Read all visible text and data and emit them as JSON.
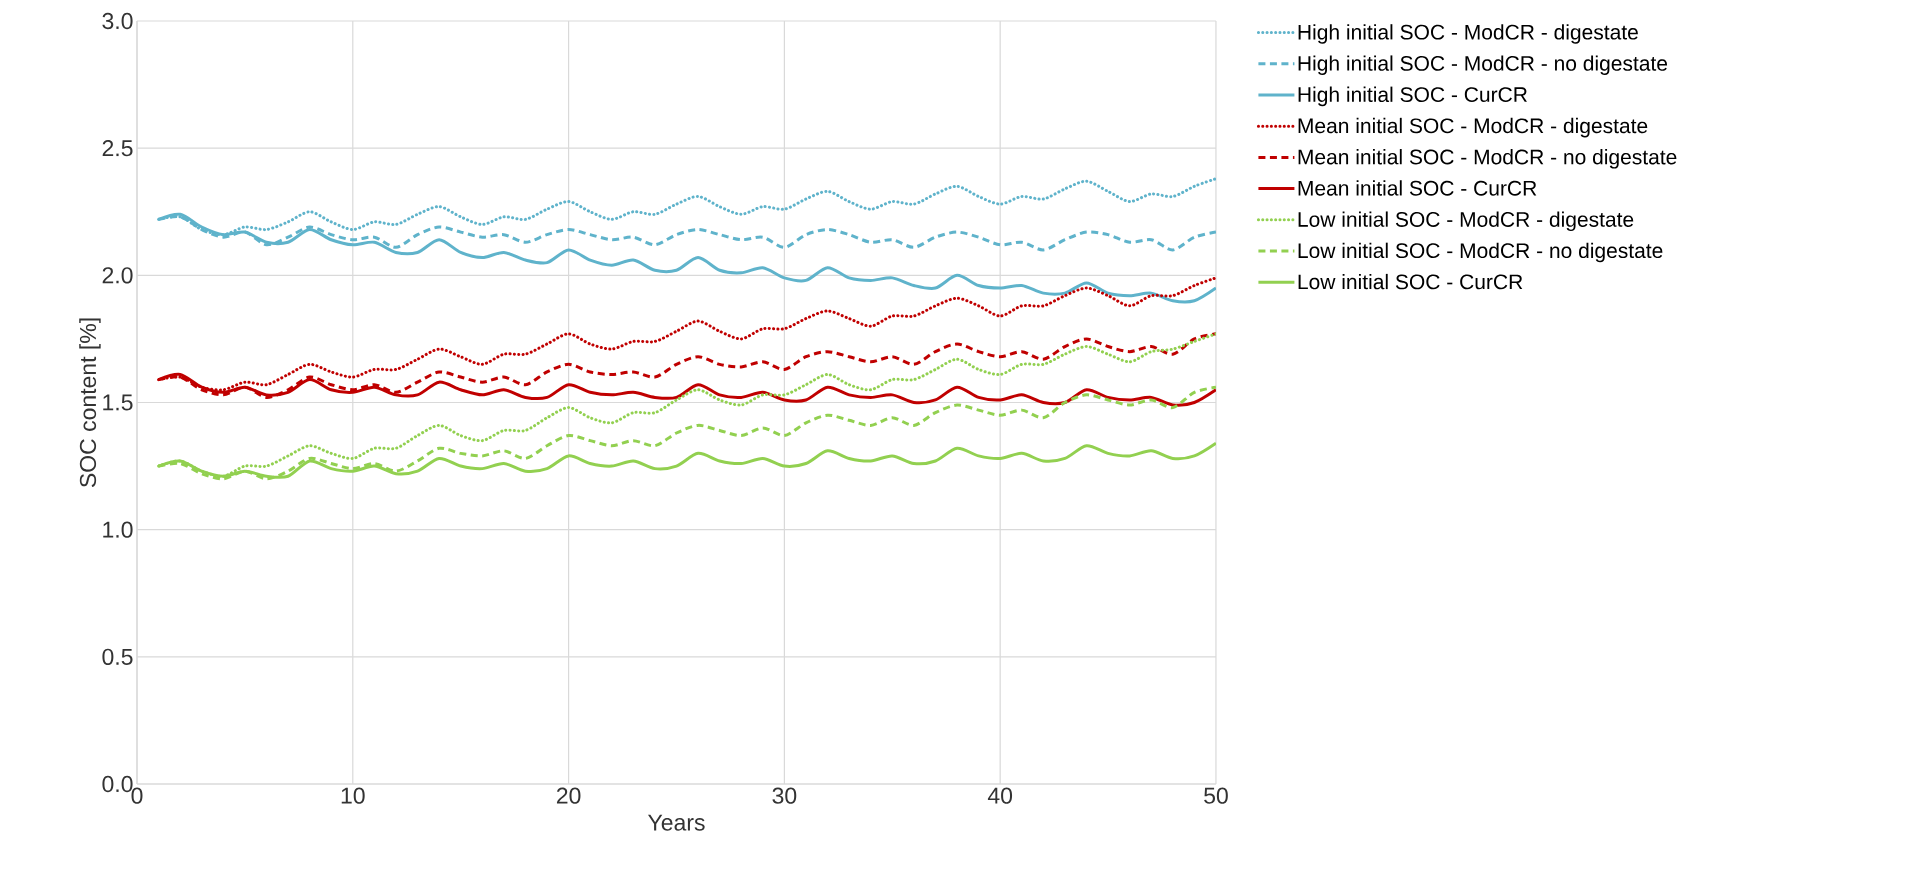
{
  "chart_data": {
    "type": "line",
    "xlabel": "Years",
    "ylabel": "SOC content  [%]",
    "x": [
      1,
      2,
      3,
      4,
      5,
      6,
      7,
      8,
      9,
      10,
      11,
      12,
      13,
      14,
      15,
      16,
      17,
      18,
      19,
      20,
      21,
      22,
      23,
      24,
      25,
      26,
      27,
      28,
      29,
      30,
      31,
      32,
      33,
      34,
      35,
      36,
      37,
      38,
      39,
      40,
      41,
      42,
      43,
      44,
      45,
      46,
      47,
      48,
      49,
      50
    ],
    "xlim": [
      0,
      50
    ],
    "xticks": [
      0,
      10,
      20,
      30,
      40,
      50
    ],
    "ylim": [
      0,
      3
    ],
    "yticks": [
      {
        "value": 0,
        "label": "0.0"
      },
      {
        "value": 0.5,
        "label": "0.5"
      },
      {
        "value": 1,
        "label": "1.0"
      },
      {
        "value": 1.5,
        "label": "1.5"
      },
      {
        "value": 2,
        "label": "2.0"
      },
      {
        "value": 2.5,
        "label": "2.5"
      },
      {
        "value": 3,
        "label": "3.0"
      }
    ],
    "grid": true,
    "legend": "right",
    "series": [
      {
        "name": "High initial SOC - ModCR - digestate",
        "color": "#5fb3cb",
        "line_style": "dotted",
        "values": [
          2.22,
          2.23,
          2.18,
          2.16,
          2.19,
          2.18,
          2.21,
          2.25,
          2.21,
          2.18,
          2.21,
          2.2,
          2.24,
          2.27,
          2.23,
          2.2,
          2.23,
          2.22,
          2.26,
          2.29,
          2.25,
          2.22,
          2.25,
          2.24,
          2.28,
          2.31,
          2.27,
          2.24,
          2.27,
          2.26,
          2.3,
          2.33,
          2.29,
          2.26,
          2.29,
          2.28,
          2.32,
          2.35,
          2.31,
          2.28,
          2.31,
          2.3,
          2.34,
          2.37,
          2.33,
          2.29,
          2.32,
          2.31,
          2.35,
          2.38
        ]
      },
      {
        "name": "High initial SOC - ModCR - no digestate",
        "color": "#5fb3cb",
        "line_style": "dashed",
        "values": [
          2.22,
          2.23,
          2.18,
          2.15,
          2.17,
          2.12,
          2.15,
          2.19,
          2.16,
          2.14,
          2.15,
          2.11,
          2.16,
          2.19,
          2.17,
          2.15,
          2.16,
          2.13,
          2.16,
          2.18,
          2.16,
          2.14,
          2.15,
          2.12,
          2.16,
          2.18,
          2.16,
          2.14,
          2.15,
          2.11,
          2.16,
          2.18,
          2.16,
          2.13,
          2.14,
          2.11,
          2.15,
          2.17,
          2.15,
          2.12,
          2.13,
          2.1,
          2.14,
          2.17,
          2.16,
          2.13,
          2.14,
          2.1,
          2.15,
          2.17
        ]
      },
      {
        "name": "High initial SOC - CurCR",
        "color": "#5fb3cb",
        "line_style": "solid",
        "values": [
          2.22,
          2.24,
          2.19,
          2.16,
          2.17,
          2.13,
          2.13,
          2.18,
          2.14,
          2.12,
          2.13,
          2.09,
          2.09,
          2.14,
          2.09,
          2.07,
          2.09,
          2.06,
          2.05,
          2.1,
          2.06,
          2.04,
          2.06,
          2.02,
          2.02,
          2.07,
          2.02,
          2.01,
          2.03,
          1.99,
          1.98,
          2.03,
          1.99,
          1.98,
          1.99,
          1.96,
          1.95,
          2.0,
          1.96,
          1.95,
          1.96,
          1.93,
          1.93,
          1.97,
          1.93,
          1.92,
          1.93,
          1.9,
          1.9,
          1.95
        ]
      },
      {
        "name": "Mean initial SOC - ModCR - digestate",
        "color": "#c00000",
        "line_style": "dotted",
        "values": [
          1.59,
          1.6,
          1.56,
          1.55,
          1.58,
          1.57,
          1.61,
          1.65,
          1.62,
          1.6,
          1.63,
          1.63,
          1.67,
          1.71,
          1.68,
          1.65,
          1.69,
          1.69,
          1.73,
          1.77,
          1.73,
          1.71,
          1.74,
          1.74,
          1.78,
          1.82,
          1.78,
          1.75,
          1.79,
          1.79,
          1.83,
          1.86,
          1.83,
          1.8,
          1.84,
          1.84,
          1.88,
          1.91,
          1.88,
          1.84,
          1.88,
          1.88,
          1.92,
          1.95,
          1.92,
          1.88,
          1.92,
          1.92,
          1.96,
          1.99
        ]
      },
      {
        "name": "Mean initial SOC - ModCR - no digestate",
        "color": "#c00000",
        "line_style": "dashed",
        "values": [
          1.59,
          1.6,
          1.55,
          1.53,
          1.56,
          1.52,
          1.55,
          1.6,
          1.57,
          1.55,
          1.57,
          1.54,
          1.58,
          1.62,
          1.6,
          1.58,
          1.6,
          1.57,
          1.62,
          1.65,
          1.62,
          1.61,
          1.62,
          1.6,
          1.65,
          1.68,
          1.65,
          1.64,
          1.66,
          1.63,
          1.68,
          1.7,
          1.68,
          1.66,
          1.68,
          1.65,
          1.7,
          1.73,
          1.7,
          1.68,
          1.7,
          1.67,
          1.72,
          1.75,
          1.72,
          1.7,
          1.72,
          1.69,
          1.75,
          1.77
        ]
      },
      {
        "name": "Mean initial SOC - CurCR",
        "color": "#c00000",
        "line_style": "solid",
        "values": [
          1.59,
          1.61,
          1.56,
          1.54,
          1.56,
          1.53,
          1.54,
          1.59,
          1.55,
          1.54,
          1.56,
          1.53,
          1.53,
          1.58,
          1.55,
          1.53,
          1.55,
          1.52,
          1.52,
          1.57,
          1.54,
          1.53,
          1.54,
          1.52,
          1.52,
          1.57,
          1.53,
          1.52,
          1.54,
          1.51,
          1.51,
          1.56,
          1.53,
          1.52,
          1.53,
          1.5,
          1.51,
          1.56,
          1.52,
          1.51,
          1.53,
          1.5,
          1.5,
          1.55,
          1.52,
          1.51,
          1.52,
          1.49,
          1.5,
          1.55
        ]
      },
      {
        "name": "Low initial SOC - ModCR - digestate",
        "color": "#92d050",
        "line_style": "dotted",
        "values": [
          1.25,
          1.27,
          1.23,
          1.21,
          1.25,
          1.25,
          1.29,
          1.33,
          1.3,
          1.28,
          1.32,
          1.32,
          1.37,
          1.41,
          1.37,
          1.35,
          1.39,
          1.39,
          1.44,
          1.48,
          1.44,
          1.42,
          1.46,
          1.46,
          1.51,
          1.55,
          1.51,
          1.49,
          1.53,
          1.53,
          1.57,
          1.61,
          1.57,
          1.55,
          1.59,
          1.59,
          1.63,
          1.67,
          1.63,
          1.61,
          1.65,
          1.65,
          1.69,
          1.72,
          1.69,
          1.66,
          1.7,
          1.71,
          1.74,
          1.77
        ]
      },
      {
        "name": "Low initial SOC - ModCR - no digestate",
        "color": "#92d050",
        "line_style": "dashed",
        "values": [
          1.25,
          1.26,
          1.22,
          1.2,
          1.23,
          1.2,
          1.23,
          1.28,
          1.26,
          1.24,
          1.26,
          1.23,
          1.27,
          1.32,
          1.3,
          1.29,
          1.31,
          1.28,
          1.33,
          1.37,
          1.35,
          1.33,
          1.35,
          1.33,
          1.38,
          1.41,
          1.39,
          1.37,
          1.4,
          1.37,
          1.42,
          1.45,
          1.43,
          1.41,
          1.44,
          1.41,
          1.46,
          1.49,
          1.47,
          1.45,
          1.47,
          1.44,
          1.5,
          1.53,
          1.51,
          1.49,
          1.51,
          1.48,
          1.54,
          1.56
        ]
      },
      {
        "name": "Low initial SOC - CurCR",
        "color": "#92d050",
        "line_style": "solid",
        "values": [
          1.25,
          1.27,
          1.23,
          1.21,
          1.23,
          1.21,
          1.21,
          1.27,
          1.24,
          1.23,
          1.25,
          1.22,
          1.23,
          1.28,
          1.25,
          1.24,
          1.26,
          1.23,
          1.24,
          1.29,
          1.26,
          1.25,
          1.27,
          1.24,
          1.25,
          1.3,
          1.27,
          1.26,
          1.28,
          1.25,
          1.26,
          1.31,
          1.28,
          1.27,
          1.29,
          1.26,
          1.27,
          1.32,
          1.29,
          1.28,
          1.3,
          1.27,
          1.28,
          1.33,
          1.3,
          1.29,
          1.31,
          1.28,
          1.29,
          1.34
        ]
      }
    ]
  }
}
